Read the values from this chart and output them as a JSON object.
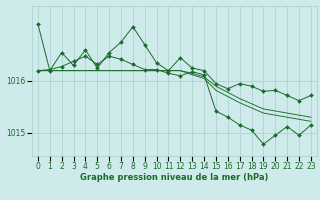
{
  "background_color": "#ceeaea",
  "grid_color": "#aacece",
  "line_color": "#1a6b2a",
  "xlabel": "Graphe pression niveau de la mer (hPa)",
  "xlabel_fontsize": 6.0,
  "ylabel_ticks": [
    1015,
    1016
  ],
  "xlim_min": -0.5,
  "xlim_max": 23.5,
  "ylim_min": 1014.55,
  "ylim_max": 1017.45,
  "x": [
    0,
    1,
    2,
    3,
    4,
    5,
    6,
    7,
    8,
    9,
    10,
    11,
    12,
    13,
    14,
    15,
    16,
    17,
    18,
    19,
    20,
    21,
    22,
    23
  ],
  "series_jagged": [
    1017.1,
    1016.2,
    1016.55,
    1016.3,
    1016.6,
    1016.25,
    1016.55,
    1016.75,
    1017.05,
    1016.7,
    1016.35,
    1016.2,
    1016.45,
    1016.25,
    1016.2,
    1015.95,
    1015.85,
    1015.95,
    1015.9,
    1015.8,
    1015.82,
    1015.72,
    1015.62,
    1015.72
  ],
  "series_flat1": [
    1016.2,
    1016.2,
    1016.2,
    1016.2,
    1016.2,
    1016.2,
    1016.2,
    1016.2,
    1016.2,
    1016.2,
    1016.2,
    1016.2,
    1016.2,
    1016.15,
    1016.08,
    1015.9,
    1015.78,
    1015.66,
    1015.56,
    1015.46,
    1015.42,
    1015.38,
    1015.34,
    1015.3
  ],
  "series_flat2": [
    1016.2,
    1016.2,
    1016.2,
    1016.2,
    1016.2,
    1016.2,
    1016.2,
    1016.2,
    1016.2,
    1016.2,
    1016.2,
    1016.2,
    1016.2,
    1016.12,
    1016.05,
    1015.82,
    1015.7,
    1015.58,
    1015.48,
    1015.38,
    1015.34,
    1015.3,
    1015.26,
    1015.22
  ],
  "series_dip": [
    1016.2,
    1016.22,
    1016.28,
    1016.38,
    1016.48,
    1016.32,
    1016.48,
    1016.42,
    1016.32,
    1016.22,
    1016.22,
    1016.15,
    1016.1,
    1016.18,
    1016.12,
    1015.42,
    1015.3,
    1015.15,
    1015.05,
    1014.78,
    1014.95,
    1015.12,
    1014.95,
    1015.15
  ],
  "tick_fontsize": 5.5,
  "tick_color": "#1a6b2a",
  "lw_main": 0.7,
  "lw_trend": 0.65,
  "ms": 2.0
}
